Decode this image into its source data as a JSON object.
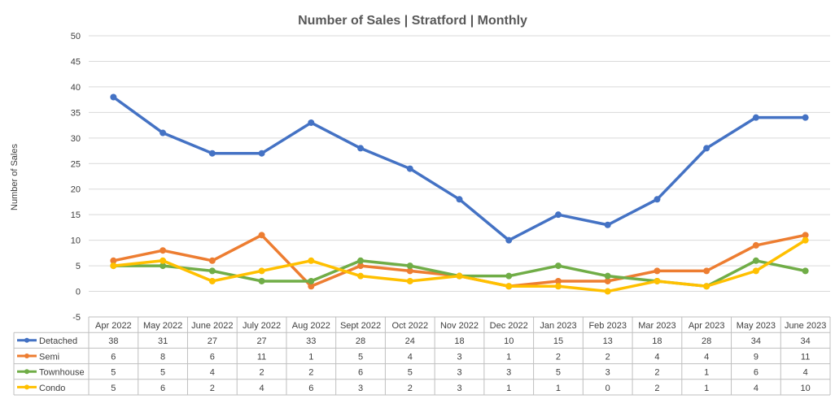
{
  "chart_data": {
    "type": "line",
    "title": "Number of Sales | Stratford | Monthly",
    "xlabel": "",
    "ylabel": "Number of Sales",
    "ylim": [
      -5,
      50
    ],
    "yticks": [
      50,
      45,
      40,
      35,
      30,
      25,
      20,
      15,
      10,
      5,
      0,
      -5
    ],
    "grid": true,
    "legend": "data-table-left",
    "categories": [
      "Apr 2022",
      "May 2022",
      "June 2022",
      "July 2022",
      "Aug 2022",
      "Sept 2022",
      "Oct 2022",
      "Nov 2022",
      "Dec 2022",
      "Jan 2023",
      "Feb 2023",
      "Mar 2023",
      "Apr 2023",
      "May 2023",
      "June 2023"
    ],
    "series": [
      {
        "name": "Detached",
        "color": "#4472C4",
        "values": [
          38,
          31,
          27,
          27,
          33,
          28,
          24,
          18,
          10,
          15,
          13,
          18,
          28,
          34,
          34
        ]
      },
      {
        "name": "Semi",
        "color": "#ED7D31",
        "values": [
          6,
          8,
          6,
          11,
          1,
          5,
          4,
          3,
          1,
          2,
          2,
          4,
          4,
          9,
          11
        ]
      },
      {
        "name": "Townhouse",
        "color": "#70AD47",
        "values": [
          5,
          5,
          4,
          2,
          2,
          6,
          5,
          3,
          3,
          5,
          3,
          2,
          1,
          6,
          4
        ]
      },
      {
        "name": "Condo",
        "color": "#FFC000",
        "values": [
          5,
          6,
          2,
          4,
          6,
          3,
          2,
          3,
          1,
          1,
          0,
          2,
          1,
          4,
          10
        ]
      }
    ]
  }
}
